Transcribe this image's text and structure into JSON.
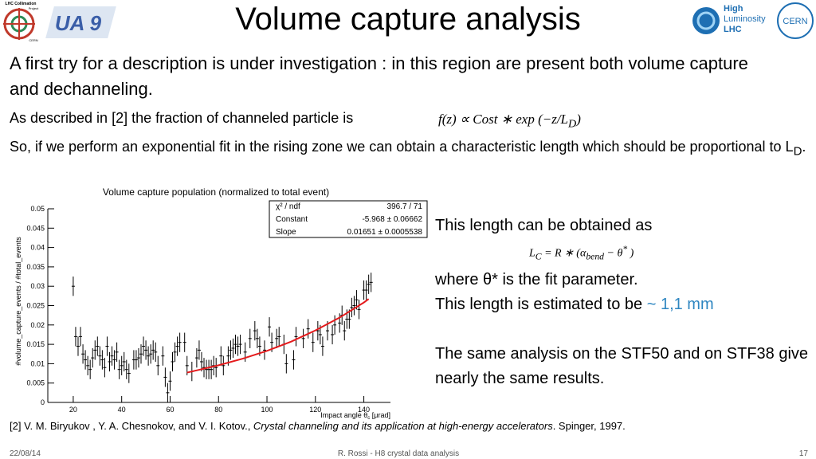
{
  "header": {
    "title": "Volume capture analysis",
    "logos": {
      "left": [
        "LHC Collimation",
        "Project",
        "CERN",
        "UA 9"
      ],
      "right": [
        "High",
        "Luminosity",
        "LHC",
        "CERN"
      ]
    }
  },
  "body": {
    "intro": "A first try for a description is under investigation : in this region are present both volume capture and dechanneling.",
    "fraction_text": "As described in [2] the fraction of channeled particle is",
    "fraction_formula": [
      "f(z) ∝ Cost ∗  exp (−z/L",
      "D",
      ")"
    ],
    "fit_text": [
      "So, if we perform an exponential fit in the rising zone we can obtain a characteristic length which should be proportional to L",
      "D",
      "."
    ]
  },
  "chart_data": {
    "type": "scatter",
    "title": "Volume capture population (normalized to total event)",
    "x_label": [
      "Impact angle θ",
      "c",
      " [μrad]"
    ],
    "y_label": "#volume_capture_events / #total_events",
    "color": "#000000",
    "x": [
      20,
      21,
      22,
      23,
      24,
      25,
      26,
      27,
      28,
      29,
      30,
      31,
      32,
      33,
      34,
      35,
      36,
      37,
      38,
      39,
      40,
      41,
      42,
      43,
      45,
      46,
      47,
      48,
      49,
      50,
      51,
      52,
      53,
      54,
      55,
      57,
      58,
      59,
      60,
      61,
      62,
      63,
      64,
      66,
      67,
      69,
      71,
      72,
      73,
      74,
      75,
      76,
      77,
      78,
      79,
      81,
      82,
      84,
      85,
      86,
      87,
      88,
      89,
      91,
      93,
      95,
      96,
      97,
      99,
      101,
      102,
      104,
      105,
      107,
      108,
      111,
      112,
      115,
      117,
      119,
      121,
      122,
      123,
      125,
      127,
      128,
      130,
      131,
      132,
      133,
      134,
      135,
      136,
      137,
      138,
      140,
      141,
      142,
      143
    ],
    "values": [
      0.03,
      0.017,
      0.0145,
      0.017,
      0.0125,
      0.011,
      0.0095,
      0.0085,
      0.0115,
      0.0135,
      0.0145,
      0.012,
      0.011,
      0.009,
      0.0145,
      0.0105,
      0.012,
      0.011,
      0.013,
      0.0085,
      0.0095,
      0.0105,
      0.0085,
      0.0075,
      0.011,
      0.011,
      0.0115,
      0.0125,
      0.0145,
      0.0135,
      0.012,
      0.0125,
      0.0135,
      0.013,
      0.0095,
      0.012,
      0.0065,
      0.0025,
      0.0055,
      0.0105,
      0.013,
      0.0145,
      0.0155,
      0.0155,
      0.0095,
      0.008,
      0.0115,
      0.0135,
      0.0105,
      0.009,
      0.0085,
      0.0085,
      0.0085,
      0.0095,
      0.009,
      0.012,
      0.0095,
      0.012,
      0.0135,
      0.014,
      0.015,
      0.0145,
      0.015,
      0.013,
      0.0165,
      0.0185,
      0.0165,
      0.0145,
      0.0135,
      0.0195,
      0.0155,
      0.0165,
      0.017,
      0.015,
      0.01,
      0.011,
      0.017,
      0.0165,
      0.019,
      0.0155,
      0.0185,
      0.0175,
      0.0145,
      0.0185,
      0.0175,
      0.02,
      0.0205,
      0.0225,
      0.0185,
      0.0215,
      0.0215,
      0.0245,
      0.025,
      0.0265,
      0.024,
      0.029,
      0.029,
      0.0305,
      0.031
    ],
    "errors": [
      0.0025,
      0.0025,
      0.0025,
      0.0025,
      0.0025,
      0.0025,
      0.0025,
      0.0025,
      0.0025,
      0.0025,
      0.0025,
      0.0025,
      0.0025,
      0.0025,
      0.0025,
      0.0025,
      0.0025,
      0.0025,
      0.0025,
      0.0025,
      0.0025,
      0.0025,
      0.0025,
      0.0025,
      0.0025,
      0.0025,
      0.0025,
      0.0025,
      0.0025,
      0.0025,
      0.0025,
      0.0025,
      0.0025,
      0.0025,
      0.0025,
      0.0025,
      0.0025,
      0.0025,
      0.0025,
      0.0025,
      0.0025,
      0.0025,
      0.0025,
      0.0025,
      0.0025,
      0.0025,
      0.0025,
      0.0025,
      0.0025,
      0.0025,
      0.0025,
      0.0025,
      0.0025,
      0.0025,
      0.0025,
      0.0025,
      0.0025,
      0.0025,
      0.0025,
      0.0025,
      0.0025,
      0.0025,
      0.0025,
      0.0025,
      0.0025,
      0.0025,
      0.0025,
      0.0025,
      0.0025,
      0.0025,
      0.0025,
      0.0025,
      0.0025,
      0.0025,
      0.0025,
      0.0025,
      0.0025,
      0.0025,
      0.0025,
      0.0025,
      0.0025,
      0.0025,
      0.0025,
      0.0025,
      0.0025,
      0.0025,
      0.0025,
      0.0025,
      0.0025,
      0.0025,
      0.0025,
      0.0025,
      0.0025,
      0.0025,
      0.0025,
      0.0025,
      0.0025,
      0.0025,
      0.0025
    ],
    "fit": {
      "color": "#e41a1c",
      "x": [
        67,
        80,
        90,
        100,
        110,
        120,
        130,
        140,
        142
      ],
      "values": [
        0.0077,
        0.0096,
        0.0113,
        0.0133,
        0.0157,
        0.0186,
        0.0219,
        0.0258,
        0.0267
      ]
    },
    "stats": [
      [
        "χ² / ndf",
        "396.7 / 71"
      ],
      [
        "Constant",
        "-5.968 ± 0.06662"
      ],
      [
        "Slope",
        "0.01651 ± 0.0005538"
      ]
    ],
    "xlim": [
      9.5,
      151
    ],
    "ylim": [
      0,
      0.05
    ],
    "xticks": [
      20,
      40,
      60,
      80,
      100,
      120,
      140
    ],
    "yticks": [
      0,
      0.005,
      0.01,
      0.015,
      0.02,
      0.025,
      0.03,
      0.035,
      0.04,
      0.045,
      0.05
    ]
  },
  "side_text": {
    "obtain": "This length can be obtained as",
    "formula": [
      "L",
      "C",
      " = R ∗ (α",
      "bend",
      " −  θ",
      "*",
      " )"
    ],
    "where": "where θ* is the fit parameter.",
    "estimate": [
      "This length is estimated to be ",
      "~ 1,1 mm"
    ],
    "same": "The same analysis on the STF50 and on STF38 give nearly the same results."
  },
  "reference": [
    "[2] V. M. Biryukov , Y. A. Chesnokov, and V. I. Kotov., ",
    "Crystal channeling and its application at high-energy accelerators",
    ". Spinger, 1997."
  ],
  "footer": {
    "date": "22/08/14",
    "center": "R. Rossi - H8 crystal data analysis",
    "page": "17"
  }
}
